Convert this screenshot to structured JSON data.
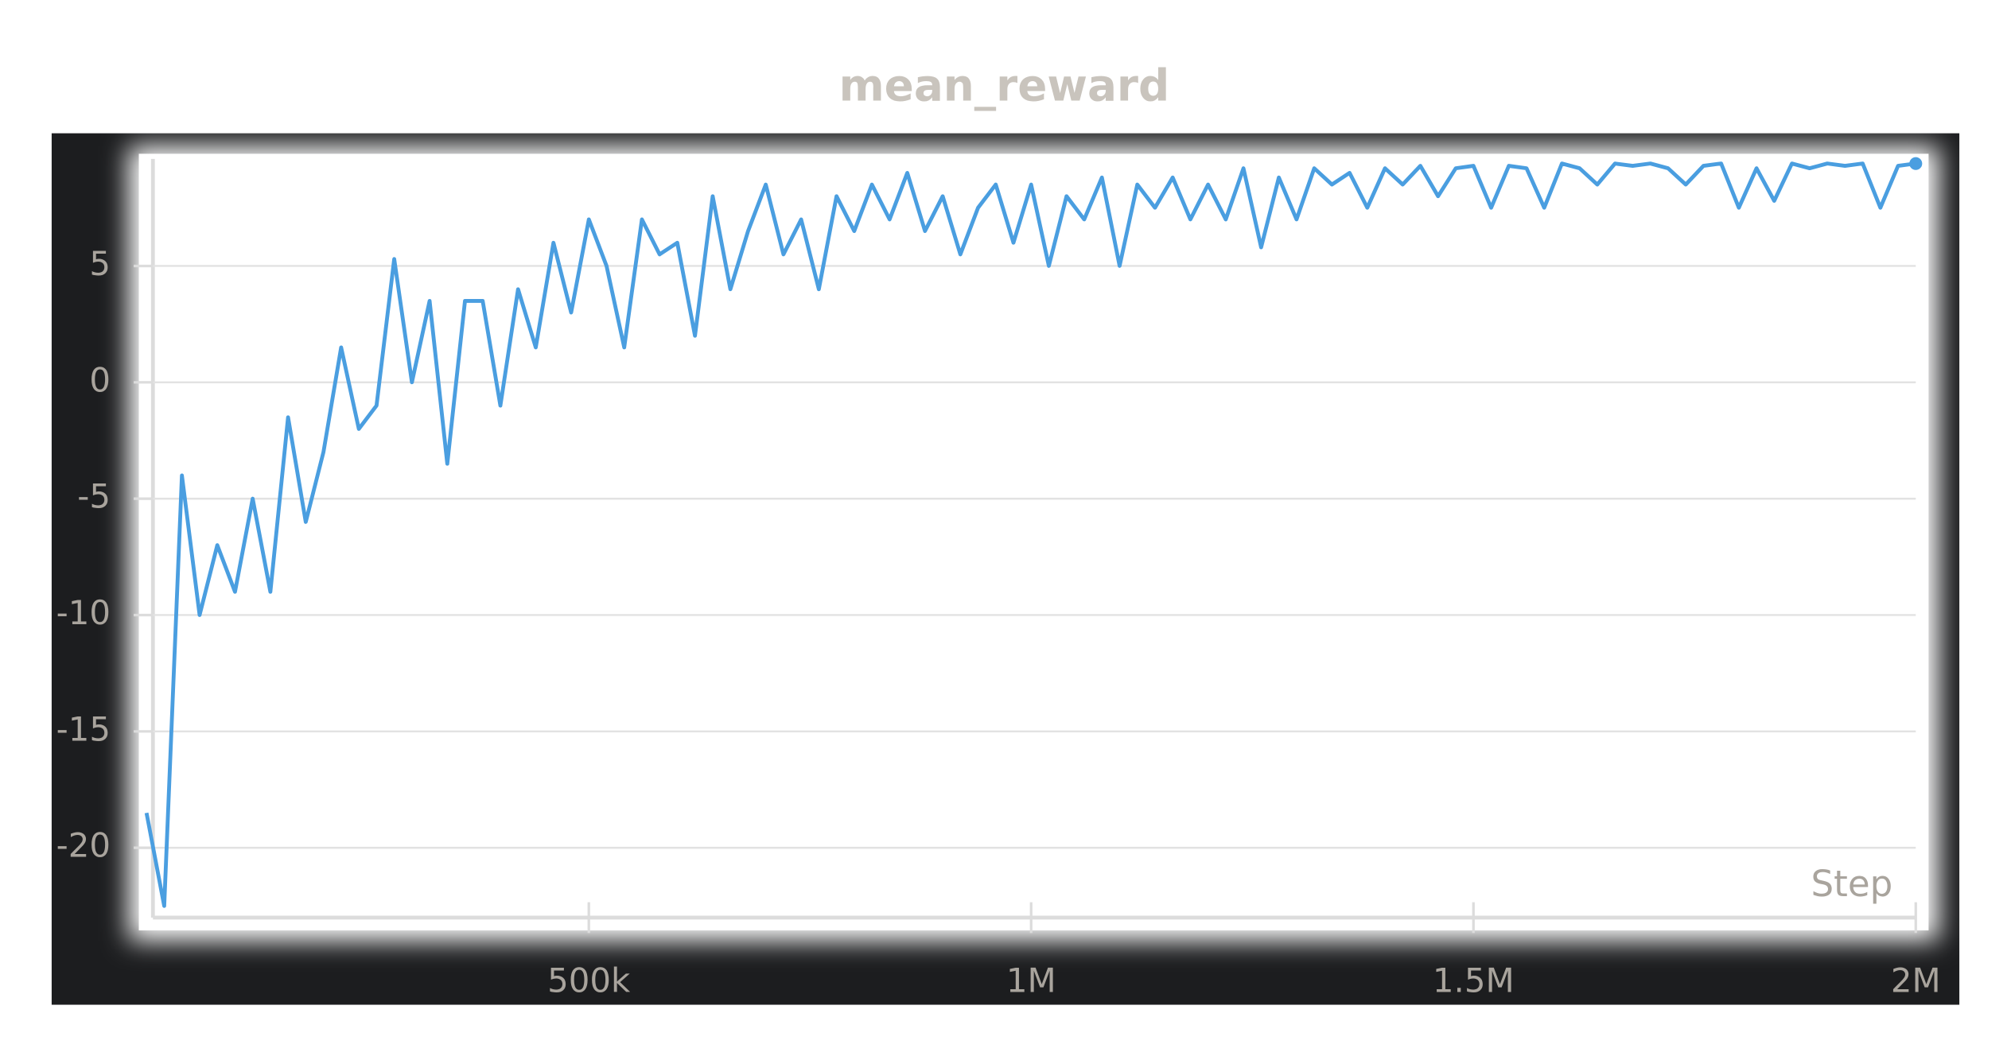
{
  "chart_data": {
    "type": "line",
    "title": "mean_reward",
    "x_label": "Step",
    "x": [
      0,
      20000,
      40000,
      60000,
      80000,
      100000,
      120000,
      140000,
      160000,
      180000,
      200000,
      220000,
      240000,
      260000,
      280000,
      300000,
      320000,
      340000,
      360000,
      380000,
      400000,
      420000,
      440000,
      460000,
      480000,
      500000,
      520000,
      540000,
      560000,
      580000,
      600000,
      620000,
      640000,
      660000,
      680000,
      700000,
      720000,
      740000,
      760000,
      780000,
      800000,
      820000,
      840000,
      860000,
      880000,
      900000,
      920000,
      940000,
      960000,
      980000,
      1000000,
      1020000,
      1040000,
      1060000,
      1080000,
      1100000,
      1120000,
      1140000,
      1160000,
      1180000,
      1200000,
      1220000,
      1240000,
      1260000,
      1280000,
      1300000,
      1320000,
      1340000,
      1360000,
      1380000,
      1400000,
      1420000,
      1440000,
      1460000,
      1480000,
      1500000,
      1520000,
      1540000,
      1560000,
      1580000,
      1600000,
      1620000,
      1640000,
      1660000,
      1680000,
      1700000,
      1720000,
      1740000,
      1760000,
      1780000,
      1800000,
      1820000,
      1840000,
      1860000,
      1880000,
      1900000,
      1920000,
      1940000,
      1960000,
      1980000,
      2000000
    ],
    "series": [
      {
        "name": "mean_reward",
        "color": "#4a9ee0",
        "values": [
          -18.5,
          -22.5,
          -4,
          -10,
          -7,
          -9,
          -5,
          -9,
          -1.5,
          -6,
          -3,
          1.5,
          -2,
          -1,
          5.3,
          0,
          3.5,
          -3.5,
          3.5,
          3.5,
          -1,
          4,
          1.5,
          6,
          3,
          7,
          5,
          1.5,
          7,
          5.5,
          6,
          2,
          8,
          4,
          6.5,
          8.5,
          5.5,
          7,
          4,
          8,
          6.5,
          8.5,
          7,
          9,
          6.5,
          8,
          5.5,
          7.5,
          8.5,
          6,
          8.5,
          5,
          8,
          7,
          8.8,
          5,
          8.5,
          7.5,
          8.8,
          7,
          8.5,
          7,
          9.2,
          5.8,
          8.8,
          7,
          9.2,
          8.5,
          9,
          7.5,
          9.2,
          8.5,
          9.3,
          8,
          9.2,
          9.3,
          7.5,
          9.3,
          9.2,
          7.5,
          9.4,
          9.2,
          8.5,
          9.4,
          9.3,
          9.4,
          9.2,
          8.5,
          9.3,
          9.4,
          7.5,
          9.2,
          7.8,
          9.4,
          9.2,
          9.4,
          9.3,
          9.4,
          7.5,
          9.3,
          9.4
        ]
      }
    ],
    "xlim": [
      0,
      2000000
    ],
    "xticks": [
      {
        "value": 500000,
        "label": "500k"
      },
      {
        "value": 1000000,
        "label": "1M"
      },
      {
        "value": 1500000,
        "label": "1.5M"
      },
      {
        "value": 2000000,
        "label": "2M"
      }
    ],
    "ylim": [
      -23,
      9.6
    ],
    "yticks": [
      -20,
      -15,
      -10,
      -5,
      0,
      5
    ],
    "grid": true
  }
}
